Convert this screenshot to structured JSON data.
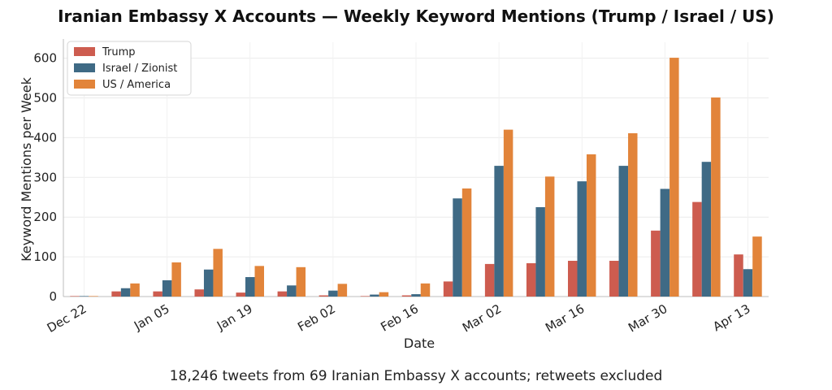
{
  "chart_data": {
    "type": "bar",
    "title": "Iranian Embassy X Accounts — Weekly Keyword Mentions (Trump / Israel / US)",
    "subtitle": "18,246 tweets from 69 Iranian Embassy X accounts; retweets excluded",
    "xlabel": "Date",
    "ylabel": "Keyword Mentions per Week",
    "ylim": [
      0,
      640
    ],
    "yticks": [
      0,
      100,
      200,
      300,
      400,
      500,
      600
    ],
    "grid": true,
    "legend_position": "top-left",
    "weeks": [
      "Dec 22",
      "Dec 29",
      "Jan 05",
      "Jan 12",
      "Jan 19",
      "Jan 26",
      "Feb 02",
      "Feb 09",
      "Feb 16",
      "Feb 23",
      "Mar 02",
      "Mar 09",
      "Mar 16",
      "Mar 23",
      "Mar 30",
      "Apr 06",
      "Apr 13"
    ],
    "xtick_labels": [
      "Dec 22",
      "Jan 05",
      "Jan 19",
      "Feb 02",
      "Feb 16",
      "Mar 02",
      "Mar 16",
      "Mar 30",
      "Apr 13"
    ],
    "series": [
      {
        "name": "Trump",
        "color": "#cd5c4f",
        "values": [
          0,
          13,
          13,
          18,
          10,
          13,
          3,
          0,
          3,
          38,
          82,
          84,
          90,
          90,
          166,
          238,
          106
        ]
      },
      {
        "name": "Israel / Zionist",
        "color": "#3f6a85",
        "values": [
          1,
          21,
          41,
          68,
          49,
          28,
          15,
          5,
          6,
          247,
          329,
          225,
          290,
          329,
          271,
          339,
          69
        ]
      },
      {
        "name": "US / America",
        "color": "#e2843a",
        "values": [
          0,
          33,
          86,
          120,
          77,
          74,
          32,
          11,
          33,
          272,
          420,
          302,
          358,
          411,
          601,
          501,
          151
        ]
      }
    ]
  }
}
